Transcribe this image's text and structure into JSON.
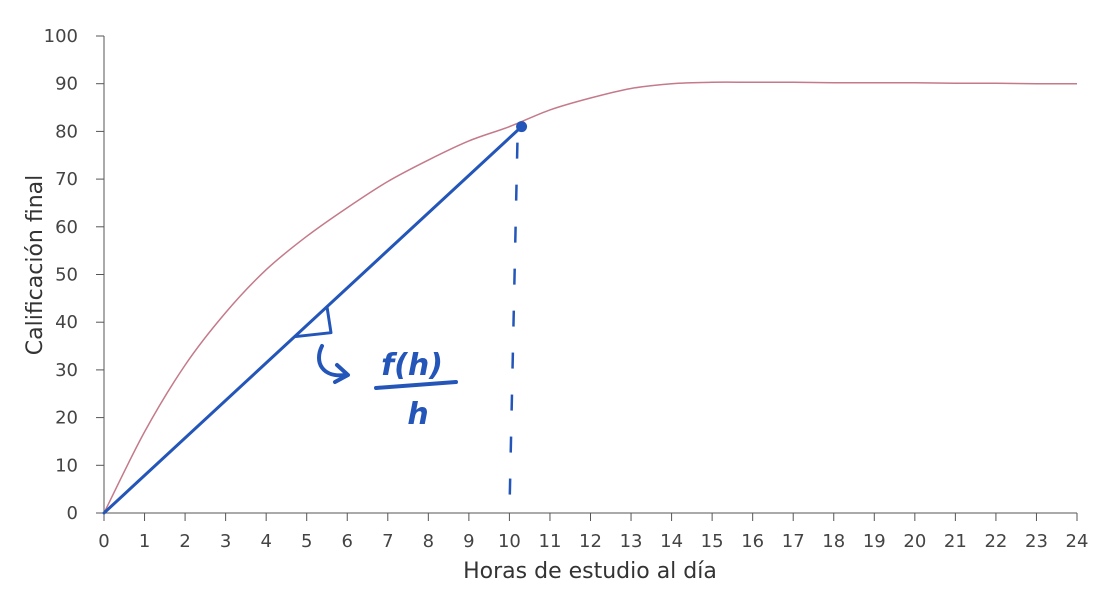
{
  "chart_data": {
    "type": "line",
    "xlabel": "Horas de estudio al día",
    "ylabel": "Calificación final",
    "xlim": [
      0,
      24
    ],
    "ylim": [
      0,
      100
    ],
    "x_ticks": [
      "0",
      "1",
      "2",
      "3",
      "4",
      "5",
      "6",
      "7",
      "8",
      "9",
      "10",
      "11",
      "12",
      "13",
      "14",
      "15",
      "16",
      "17",
      "18",
      "19",
      "20",
      "21",
      "22",
      "23",
      "24"
    ],
    "y_ticks": [
      "0",
      "10",
      "20",
      "30",
      "40",
      "50",
      "60",
      "70",
      "80",
      "90",
      "100"
    ],
    "grid": false,
    "series": [
      {
        "x": [
          0,
          1,
          2,
          3,
          4,
          5,
          6,
          7,
          8,
          9,
          10,
          11,
          12,
          13,
          14,
          15,
          16,
          17,
          18,
          19,
          20,
          21,
          22,
          23,
          24
        ],
        "y": [
          0,
          17,
          31,
          42,
          51,
          58,
          64,
          69.5,
          74,
          78,
          81,
          84.5,
          87,
          89,
          90,
          90.3,
          90.3,
          90.3,
          90.2,
          90.2,
          90.2,
          90.1,
          90.1,
          90,
          90
        ],
        "color": "#c47a8a"
      }
    ],
    "annotations": {
      "secant": {
        "x": [
          0,
          10.3
        ],
        "y": [
          0,
          81
        ],
        "color": "#2356b8"
      },
      "point": {
        "x": 10.3,
        "y": 81,
        "color": "#2356b8"
      },
      "dashed_drop": {
        "x": 10,
        "y_from": 81,
        "y_to": 0,
        "color": "#2356b8"
      },
      "handwritten_fraction": {
        "numerator": "f(h)",
        "denominator": "h"
      }
    }
  }
}
